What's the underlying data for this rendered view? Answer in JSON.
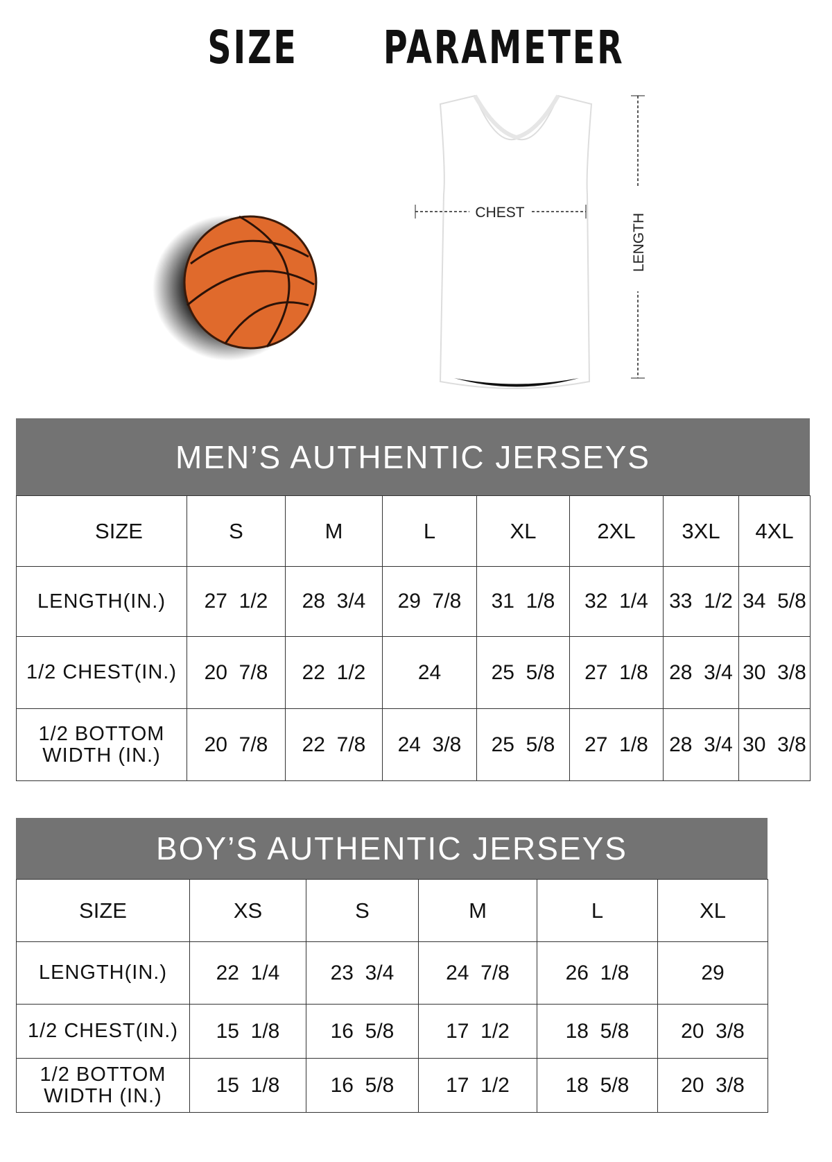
{
  "title": "SIZE   PARAMETER",
  "diagram": {
    "chest_label": "CHEST",
    "length_label": "LENGTH",
    "ball_color": "#e06a2c"
  },
  "men": {
    "heading": "MEN’S AUTHENTIC JERSEYS",
    "size_label": "SIZE",
    "sizes": [
      "S",
      "M",
      "L",
      "XL",
      "2XL",
      "3XL",
      "4XL"
    ],
    "rows": [
      {
        "label": "LENGTH(IN.)",
        "values": [
          "27  1/2",
          "28  3/4",
          "29  7/8",
          "31  1/8",
          "32  1/4",
          "33  1/2",
          "34  5/8"
        ]
      },
      {
        "label": "1/2 CHEST(IN.)",
        "values": [
          "20  7/8",
          "22  1/2",
          "24",
          "25  5/8",
          "27  1/8",
          "28  3/4",
          "30  3/8"
        ]
      },
      {
        "label": "1/2 BOTTOM WIDTH  (IN.)",
        "values": [
          "20  7/8",
          "22  7/8",
          "24  3/8",
          "25  5/8",
          "27  1/8",
          "28  3/4",
          "30  3/8"
        ]
      }
    ]
  },
  "boys": {
    "heading": "BOY’S AUTHENTIC JERSEYS",
    "size_label": "SIZE",
    "sizes": [
      "XS",
      "S",
      "M",
      "L",
      "XL"
    ],
    "rows": [
      {
        "label": "LENGTH(IN.)",
        "values": [
          "22  1/4",
          "23  3/4",
          "24  7/8",
          "26  1/8",
          "29"
        ]
      },
      {
        "label": "1/2 CHEST(IN.)",
        "values": [
          "15  1/8",
          "16  5/8",
          "17  1/2",
          "18  5/8",
          "20  3/8"
        ]
      },
      {
        "label": "1/2 BOTTOM WIDTH  (IN.)",
        "values": [
          "15  1/8",
          "16  5/8",
          "17  1/2",
          "18  5/8",
          "20  3/8"
        ]
      }
    ]
  },
  "colors": {
    "banner": "#737373",
    "banner_text": "#ffffff"
  }
}
